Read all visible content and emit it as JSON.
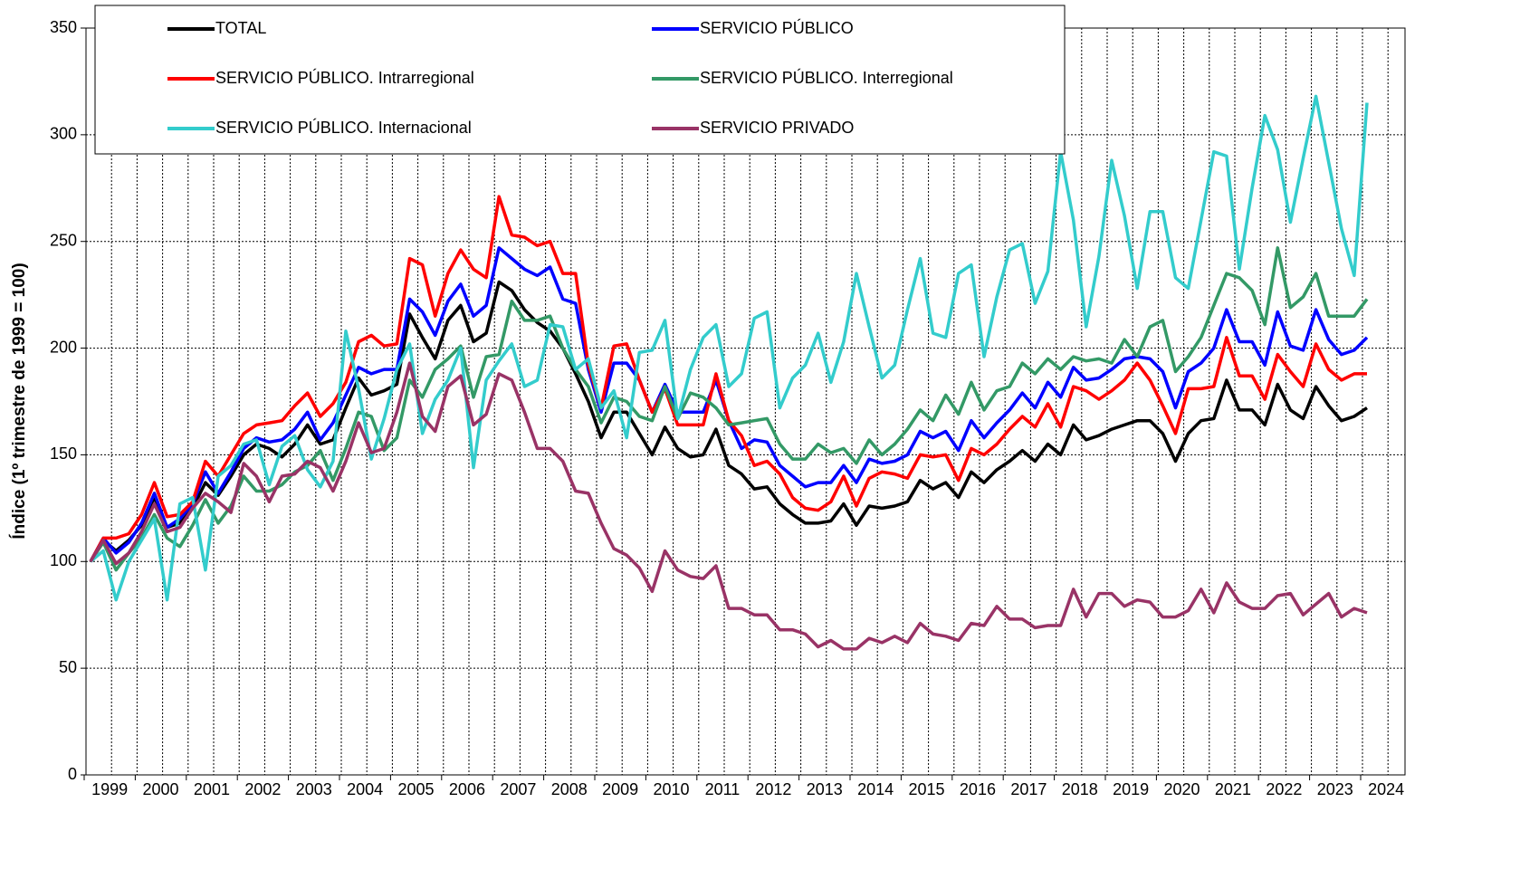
{
  "chart_data": {
    "type": "line",
    "y_label": "Índice (1º trimestre de 1999 = 100)",
    "categories": [
      "1999",
      null,
      null,
      null,
      "2000",
      null,
      null,
      null,
      "2001",
      null,
      null,
      null,
      "2002",
      null,
      null,
      null,
      "2003",
      null,
      null,
      null,
      "2004",
      null,
      null,
      null,
      "2005",
      null,
      null,
      null,
      "2006",
      null,
      null,
      null,
      "2007",
      null,
      null,
      null,
      "2008",
      null,
      null,
      null,
      "2009",
      null,
      null,
      null,
      "2010",
      null,
      null,
      null,
      "2011",
      null,
      null,
      null,
      "2012",
      null,
      null,
      null,
      "2013",
      null,
      null,
      null,
      "2014",
      null,
      null,
      null,
      "2015",
      null,
      null,
      null,
      "2016",
      null,
      null,
      null,
      "2017",
      null,
      null,
      null,
      "2018",
      null,
      null,
      null,
      "2019",
      null,
      null,
      null,
      "2020",
      null,
      null,
      null,
      "2021",
      null,
      null,
      null,
      "2022",
      null,
      null,
      null,
      "2023",
      null,
      null,
      null,
      "2024"
    ],
    "ylim": [
      0,
      350
    ],
    "yticks": [
      0,
      50,
      100,
      150,
      200,
      250,
      300,
      350
    ],
    "grid": true,
    "legend": "top-left",
    "series": [
      {
        "name": "TOTAL",
        "color": "#000000",
        "values": [
          100,
          110,
          105,
          110,
          117,
          130,
          116,
          118,
          125,
          137,
          131,
          140,
          150,
          155,
          153,
          149,
          155,
          164,
          155,
          157,
          172,
          186,
          178,
          180,
          183,
          216,
          205,
          195,
          213,
          220,
          203,
          207,
          231,
          227,
          218,
          212,
          208,
          200,
          188,
          175,
          158,
          170,
          170,
          160,
          150,
          163,
          153,
          149,
          150,
          162,
          145,
          141,
          134,
          135,
          127,
          122,
          118,
          118,
          119,
          127,
          117,
          126,
          125,
          126,
          128,
          138,
          134,
          137,
          130,
          142,
          137,
          143,
          147,
          152,
          147,
          155,
          150,
          164,
          157,
          159,
          162,
          164,
          166,
          166,
          160,
          147,
          160,
          166,
          167,
          185,
          171,
          171,
          164,
          183,
          171,
          167,
          182,
          173,
          166,
          168,
          172
        ]
      },
      {
        "name": "SERVICIO PÚBLICO",
        "color": "#0000ff",
        "values": [
          100,
          111,
          104,
          109,
          118,
          132,
          116,
          120,
          127,
          142,
          132,
          142,
          153,
          158,
          156,
          157,
          162,
          170,
          157,
          165,
          178,
          191,
          188,
          190,
          190,
          223,
          217,
          206,
          222,
          230,
          215,
          220,
          247,
          242,
          237,
          234,
          238,
          223,
          221,
          190,
          170,
          193,
          193,
          185,
          170,
          183,
          170,
          170,
          170,
          185,
          166,
          153,
          157,
          156,
          145,
          140,
          135,
          137,
          137,
          145,
          137,
          148,
          146,
          147,
          150,
          161,
          158,
          161,
          152,
          166,
          158,
          165,
          171,
          179,
          172,
          184,
          177,
          191,
          185,
          186,
          190,
          195,
          196,
          195,
          189,
          172,
          189,
          193,
          200,
          218,
          203,
          203,
          192,
          217,
          201,
          199,
          218,
          204,
          197,
          199,
          205
        ]
      },
      {
        "name": "SERVICIO PÚBLICO. Intrarregional",
        "color": "#ff0000",
        "values": [
          100,
          111,
          111,
          113,
          122,
          137,
          121,
          122,
          128,
          147,
          140,
          150,
          160,
          164,
          165,
          166,
          173,
          179,
          168,
          174,
          184,
          203,
          206,
          201,
          202,
          242,
          239,
          215,
          235,
          246,
          237,
          233,
          271,
          253,
          252,
          248,
          250,
          235,
          235,
          192,
          172,
          201,
          202,
          185,
          170,
          181,
          164,
          164,
          164,
          188,
          166,
          159,
          145,
          147,
          141,
          130,
          125,
          124,
          128,
          140,
          126,
          139,
          142,
          141,
          139,
          150,
          149,
          150,
          138,
          153,
          150,
          155,
          162,
          168,
          163,
          174,
          163,
          182,
          180,
          176,
          180,
          185,
          193,
          185,
          173,
          160,
          181,
          181,
          182,
          205,
          187,
          187,
          176,
          197,
          189,
          182,
          202,
          190,
          185,
          188,
          188
        ]
      },
      {
        "name": "SERVICIO PÚBLICO. Interregional",
        "color": "#339966",
        "values": [
          100,
          109,
          96,
          104,
          111,
          122,
          111,
          107,
          117,
          129,
          118,
          126,
          140,
          133,
          133,
          136,
          142,
          145,
          152,
          138,
          153,
          170,
          168,
          152,
          158,
          185,
          177,
          190,
          195,
          201,
          177,
          196,
          197,
          222,
          213,
          213,
          215,
          200,
          190,
          182,
          165,
          177,
          175,
          168,
          166,
          182,
          167,
          179,
          177,
          172,
          164,
          165,
          166,
          167,
          155,
          148,
          148,
          155,
          151,
          153,
          146,
          157,
          150,
          155,
          162,
          171,
          166,
          178,
          169,
          184,
          171,
          180,
          182,
          193,
          188,
          195,
          190,
          196,
          194,
          195,
          193,
          204,
          196,
          210,
          213,
          189,
          196,
          205,
          220,
          235,
          233,
          227,
          211,
          247,
          219,
          224,
          235,
          215,
          215,
          215,
          223
        ]
      },
      {
        "name": "SERVICIO PÚBLICO. Internacional",
        "color": "#33cccc",
        "values": [
          100,
          105,
          82,
          100,
          110,
          120,
          82,
          127,
          130,
          96,
          140,
          145,
          155,
          157,
          136,
          154,
          159,
          143,
          135,
          147,
          208,
          181,
          148,
          167,
          190,
          202,
          160,
          176,
          185,
          200,
          144,
          185,
          194,
          202,
          182,
          185,
          211,
          210,
          190,
          195,
          172,
          180,
          158,
          198,
          199,
          213,
          167,
          190,
          205,
          211,
          182,
          188,
          214,
          217,
          172,
          186,
          192,
          207,
          184,
          203,
          235,
          210,
          186,
          192,
          218,
          242,
          207,
          205,
          235,
          239,
          196,
          224,
          246,
          249,
          221,
          236,
          292,
          260,
          210,
          243,
          288,
          262,
          228,
          264,
          264,
          233,
          228,
          260,
          292,
          290,
          237,
          275,
          309,
          293,
          259,
          289,
          318,
          287,
          256,
          234,
          315
        ]
      },
      {
        "name": "SERVICIO PRIVADO",
        "color": "#993366",
        "values": [
          100,
          110,
          99,
          104,
          114,
          127,
          114,
          116,
          125,
          132,
          128,
          123,
          146,
          140,
          128,
          140,
          141,
          147,
          144,
          133,
          147,
          165,
          151,
          153,
          170,
          193,
          168,
          161,
          182,
          187,
          164,
          169,
          188,
          185,
          170,
          153,
          153,
          147,
          133,
          132,
          118,
          106,
          103,
          97,
          86,
          105,
          96,
          93,
          92,
          98,
          78,
          78,
          75,
          75,
          68,
          68,
          66,
          60,
          63,
          59,
          59,
          64,
          62,
          65,
          62,
          71,
          66,
          65,
          63,
          71,
          70,
          79,
          73,
          73,
          69,
          70,
          70,
          87,
          74,
          85,
          85,
          79,
          82,
          81,
          74,
          74,
          77,
          87,
          76,
          90,
          81,
          78,
          78,
          84,
          85,
          75,
          80,
          85,
          74,
          78,
          76
        ]
      }
    ]
  }
}
